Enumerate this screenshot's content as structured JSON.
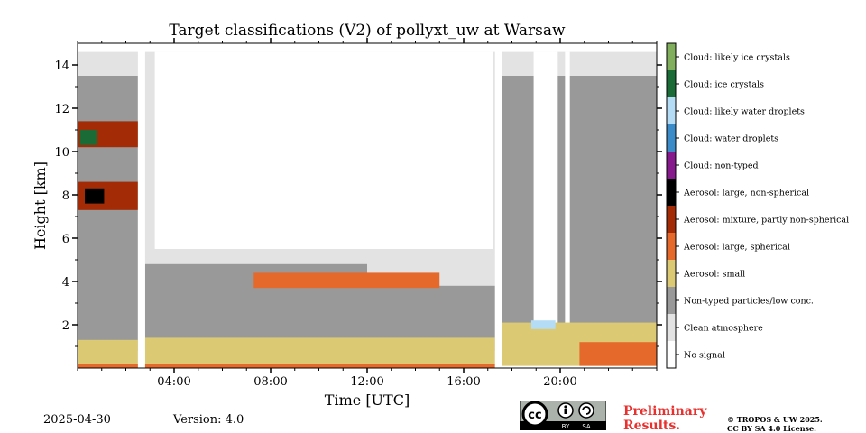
{
  "header": {
    "title": "Target classifications (V2) of pollyxt_uw at Warsaw"
  },
  "footer": {
    "date": "2025-04-30",
    "version": "Version: 4.0",
    "preliminary_line1": "Preliminary",
    "preliminary_line2": "Results.",
    "copyright_line1": "© TROPOS & UW 2025.",
    "copyright_line2": "CC BY SA 4.0 License.",
    "license_badge": {
      "by": "BY",
      "sa": "SA",
      "cc": "cc"
    }
  },
  "chart_data": {
    "type": "heatmap",
    "title": "Target classifications (V2) of pollyxt_uw at Warsaw",
    "xlabel": "Time [UTC]",
    "ylabel": "Height [km]",
    "xlim": [
      0,
      24
    ],
    "ylim": [
      0,
      15
    ],
    "x_ticks": [
      {
        "value": 4,
        "label": "04:00"
      },
      {
        "value": 8,
        "label": "08:00"
      },
      {
        "value": 12,
        "label": "12:00"
      },
      {
        "value": 16,
        "label": "16:00"
      },
      {
        "value": 20,
        "label": "20:00"
      }
    ],
    "y_ticks": [
      {
        "value": 2,
        "label": "2"
      },
      {
        "value": 4,
        "label": "4"
      },
      {
        "value": 6,
        "label": "6"
      },
      {
        "value": 8,
        "label": "8"
      },
      {
        "value": 10,
        "label": "10"
      },
      {
        "value": 12,
        "label": "12"
      },
      {
        "value": 14,
        "label": "14"
      }
    ],
    "classes": [
      {
        "name": "No signal",
        "color": "#ffffff"
      },
      {
        "name": "Clean atmosphere",
        "color": "#e3e3e3"
      },
      {
        "name": "Non-typed particles/low conc.",
        "color": "#999999"
      },
      {
        "name": "Aerosol: small",
        "color": "#dbc973"
      },
      {
        "name": "Aerosol: large, spherical",
        "color": "#e6692c"
      },
      {
        "name": "Aerosol: mixture, partly non-spherical",
        "color": "#a32b06"
      },
      {
        "name": "Aerosol: large, non-spherical",
        "color": "#000000"
      },
      {
        "name": "Cloud: non-typed",
        "color": "#86198c"
      },
      {
        "name": "Cloud: water droplets",
        "color": "#3a8bc7"
      },
      {
        "name": "Cloud: likely water droplets",
        "color": "#b5dcf5"
      },
      {
        "name": "Cloud: ice crystals",
        "color": "#1a6b35"
      },
      {
        "name": "Cloud: likely ice crystals",
        "color": "#80ae5c"
      }
    ],
    "regions": [
      {
        "class": "Clean atmosphere",
        "x": [
          0,
          24
        ],
        "y": [
          0.2,
          14.6
        ]
      },
      {
        "class": "Non-typed particles/low conc.",
        "x": [
          0,
          2.5
        ],
        "y": [
          0.8,
          13.5
        ]
      },
      {
        "class": "Non-typed particles/low conc.",
        "x": [
          2.8,
          12
        ],
        "y": [
          0.8,
          4.8
        ]
      },
      {
        "class": "Non-typed particles/low conc.",
        "x": [
          9,
          17.3
        ],
        "y": [
          0.8,
          3.8
        ]
      },
      {
        "class": "Non-typed particles/low conc.",
        "x": [
          17.6,
          24
        ],
        "y": [
          0.6,
          13.5
        ]
      },
      {
        "class": "No signal",
        "x": [
          3.2,
          17.2
        ],
        "y": [
          5.5,
          14.6
        ]
      },
      {
        "class": "No signal",
        "x": [
          18.9,
          19.9
        ],
        "y": [
          2,
          14.6
        ]
      },
      {
        "class": "No signal",
        "x": [
          20.2,
          20.4
        ],
        "y": [
          1.9,
          14.6
        ]
      },
      {
        "class": "Aerosol: small",
        "x": [
          0,
          2.5
        ],
        "y": [
          0.1,
          1.3
        ]
      },
      {
        "class": "Aerosol: small",
        "x": [
          2.8,
          17.3
        ],
        "y": [
          0.1,
          1.4
        ]
      },
      {
        "class": "Aerosol: small",
        "x": [
          17.6,
          24
        ],
        "y": [
          0.1,
          2.1
        ]
      },
      {
        "class": "Aerosol: large, spherical",
        "x": [
          0,
          17.3
        ],
        "y": [
          0,
          0.2
        ]
      },
      {
        "class": "Aerosol: large, spherical",
        "x": [
          20.8,
          24
        ],
        "y": [
          0.1,
          1.2
        ]
      },
      {
        "class": "Aerosol: mixture, partly non-spherical",
        "x": [
          0,
          2.5
        ],
        "y": [
          7.3,
          8.6
        ]
      },
      {
        "class": "Aerosol: mixture, partly non-spherical",
        "x": [
          0,
          2.7
        ],
        "y": [
          10.2,
          11.4
        ]
      },
      {
        "class": "Aerosol: large, non-spherical",
        "x": [
          0.3,
          1.1
        ],
        "y": [
          7.6,
          8.3
        ]
      },
      {
        "class": "Cloud: ice crystals",
        "x": [
          0.1,
          0.8
        ],
        "y": [
          10.3,
          11
        ]
      },
      {
        "class": "Cloud: likely water droplets",
        "x": [
          18.8,
          19.8
        ],
        "y": [
          1.8,
          2.2
        ]
      },
      {
        "class": "Aerosol: large, spherical",
        "x": [
          7.3,
          15
        ],
        "y": [
          3.7,
          4.4
        ]
      },
      {
        "class": "No signal",
        "x": [
          2.5,
          2.8
        ],
        "y": [
          0,
          15
        ]
      },
      {
        "class": "No signal",
        "x": [
          17.3,
          17.6
        ],
        "y": [
          0,
          15
        ]
      }
    ]
  }
}
